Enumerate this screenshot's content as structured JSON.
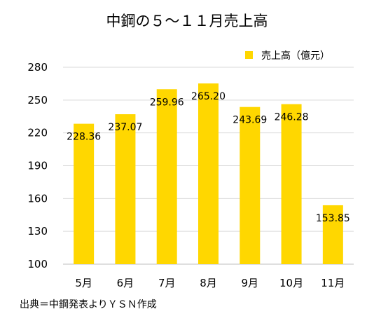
{
  "chart_data": {
    "type": "bar",
    "title": "中鋼の５～１１月売上高",
    "categories": [
      "5月",
      "6月",
      "7月",
      "8月",
      "9月",
      "10月",
      "11月"
    ],
    "series": [
      {
        "name": "売上高（億元）",
        "color": "#FFD700",
        "values": [
          228.36,
          237.07,
          259.96,
          265.2,
          243.69,
          246.28,
          153.85
        ]
      }
    ],
    "data_labels": [
      "228.36",
      "237.07",
      "259.96",
      "265.20",
      "243.69",
      "246.28",
      "153.85"
    ],
    "ylim": [
      100,
      280
    ],
    "yticks": [
      100,
      130,
      160,
      190,
      220,
      250,
      280
    ],
    "grid": true,
    "legend": "top-right",
    "source": "出典＝中鋼発表よりＹＳＮ作成"
  }
}
